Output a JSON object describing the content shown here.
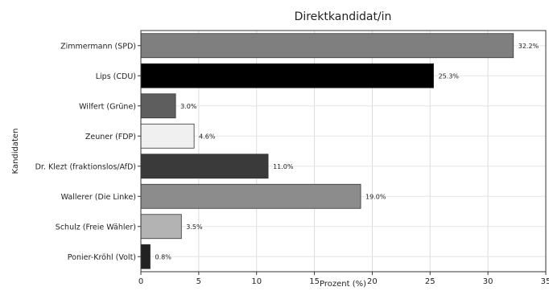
{
  "chart_data": {
    "type": "bar",
    "orientation": "horizontal",
    "title": "Direktkandidat/in",
    "xlabel": "Prozent (%)",
    "ylabel": "Kandidaten",
    "xlim": [
      0,
      35
    ],
    "x_ticks": [
      0,
      5,
      10,
      15,
      20,
      25,
      30,
      35
    ],
    "grid": true,
    "categories": [
      "Zimmermann (SPD)",
      "Lips (CDU)",
      "Wilfert (Grüne)",
      "Zeuner (FDP)",
      "Dr. Klezt (fraktionslos/AfD)",
      "Wallerer (Die Linke)",
      "Schulz (Freie Wähler)",
      "Ponier-Kröhl (Volt)"
    ],
    "values": [
      32.2,
      25.3,
      3.0,
      4.6,
      11.0,
      19.0,
      3.5,
      0.8
    ],
    "value_labels": [
      "32.2%",
      "25.3%",
      "3.0%",
      "4.6%",
      "11.0%",
      "19.0%",
      "3.5%",
      "0.8%"
    ],
    "colors": [
      "#7f7f7f",
      "#000000",
      "#5e5e5e",
      "#f0f0f0",
      "#3a3a3a",
      "#8c8c8c",
      "#b3b3b3",
      "#222222"
    ]
  }
}
